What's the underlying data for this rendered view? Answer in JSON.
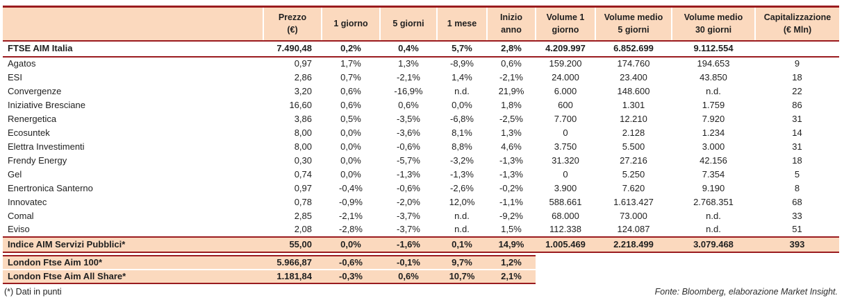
{
  "colors": {
    "accent_border": "#9A1B1F",
    "header_background": "#FBD9BE",
    "text": "#1F1F1F"
  },
  "table": {
    "headers": [
      {
        "lines": [
          ""
        ]
      },
      {
        "lines": [
          "Prezzo",
          "(€)"
        ]
      },
      {
        "lines": [
          "1 giorno"
        ]
      },
      {
        "lines": [
          "5 giorni"
        ]
      },
      {
        "lines": [
          "1 mese"
        ]
      },
      {
        "lines": [
          "Inizio anno"
        ]
      },
      {
        "lines": [
          "Volume 1",
          "giorno"
        ]
      },
      {
        "lines": [
          "Volume medio",
          "5 giorni"
        ]
      },
      {
        "lines": [
          "Volume medio",
          "30 giorni"
        ]
      },
      {
        "lines": [
          "Capitalizzazione",
          "(€ Mln)"
        ]
      }
    ],
    "rows": [
      {
        "style": "index",
        "cells": [
          "FTSE AIM Italia",
          "7.490,48",
          "0,2%",
          "0,4%",
          "5,7%",
          "2,8%",
          "4.209.997",
          "6.852.699",
          "9.112.554",
          ""
        ]
      },
      {
        "style": "normal",
        "cells": [
          "Agatos",
          "0,97",
          "1,7%",
          "1,3%",
          "-8,9%",
          "0,6%",
          "159.200",
          "174.760",
          "194.653",
          "9"
        ]
      },
      {
        "style": "normal",
        "cells": [
          "ESI",
          "2,86",
          "0,7%",
          "-2,1%",
          "1,4%",
          "-2,1%",
          "24.000",
          "23.400",
          "43.850",
          "18"
        ]
      },
      {
        "style": "normal",
        "cells": [
          "Convergenze",
          "3,20",
          "0,6%",
          "-16,9%",
          "n.d.",
          "21,9%",
          "6.000",
          "148.600",
          "n.d.",
          "22"
        ]
      },
      {
        "style": "normal",
        "cells": [
          "Iniziative Bresciane",
          "16,60",
          "0,6%",
          "0,6%",
          "0,0%",
          "1,8%",
          "600",
          "1.301",
          "1.759",
          "86"
        ]
      },
      {
        "style": "normal",
        "cells": [
          "Renergetica",
          "3,86",
          "0,5%",
          "-3,5%",
          "-6,8%",
          "-2,5%",
          "7.700",
          "12.210",
          "7.920",
          "31"
        ]
      },
      {
        "style": "normal",
        "cells": [
          "Ecosuntek",
          "8,00",
          "0,0%",
          "-3,6%",
          "8,1%",
          "1,3%",
          "0",
          "2.128",
          "1.234",
          "14"
        ]
      },
      {
        "style": "normal",
        "cells": [
          "Elettra Investimenti",
          "8,00",
          "0,0%",
          "-0,6%",
          "8,8%",
          "4,6%",
          "3.750",
          "5.500",
          "3.000",
          "31"
        ]
      },
      {
        "style": "normal",
        "cells": [
          "Frendy Energy",
          "0,30",
          "0,0%",
          "-5,7%",
          "-3,2%",
          "-1,3%",
          "31.320",
          "27.216",
          "42.156",
          "18"
        ]
      },
      {
        "style": "normal",
        "cells": [
          "Gel",
          "0,74",
          "0,0%",
          "-1,3%",
          "-1,3%",
          "-1,3%",
          "0",
          "5.250",
          "7.354",
          "5"
        ]
      },
      {
        "style": "normal",
        "cells": [
          "Enertronica Santerno",
          "0,97",
          "-0,4%",
          "-0,6%",
          "-2,6%",
          "-0,2%",
          "3.900",
          "7.620",
          "9.190",
          "8"
        ]
      },
      {
        "style": "normal",
        "cells": [
          "Innovatec",
          "0,78",
          "-0,9%",
          "-2,0%",
          "12,0%",
          "-1,1%",
          "588.661",
          "1.613.427",
          "2.768.351",
          "68"
        ]
      },
      {
        "style": "normal",
        "cells": [
          "Comal",
          "2,85",
          "-2,1%",
          "-3,7%",
          "n.d.",
          "-9,2%",
          "68.000",
          "73.000",
          "n.d.",
          "33"
        ]
      },
      {
        "style": "normal",
        "cells": [
          "Eviso",
          "2,08",
          "-2,8%",
          "-3,7%",
          "n.d.",
          "1,5%",
          "112.338",
          "124.087",
          "n.d.",
          "51"
        ]
      },
      {
        "style": "aim",
        "cells": [
          "Indice AIM Servizi Pubblici*",
          "55,00",
          "0,0%",
          "-1,6%",
          "0,1%",
          "14,9%",
          "1.005.469",
          "2.218.499",
          "3.079.468",
          "393"
        ]
      },
      {
        "style": "spacer",
        "cells": []
      },
      {
        "style": "london-first",
        "cells": [
          "London Ftse Aim 100*",
          "5.966,87",
          "-0,6%",
          "-0,1%",
          "9,7%",
          "1,2%",
          "",
          "",
          "",
          ""
        ]
      },
      {
        "style": "london-last",
        "cells": [
          "London Ftse Aim All Share*",
          "1.181,84",
          "-0,3%",
          "0,6%",
          "10,7%",
          "2,1%",
          "",
          "",
          "",
          ""
        ]
      }
    ]
  },
  "footer": {
    "footnote": "(*) Dati in punti",
    "source": "Fonte: Bloomberg, elaborazione Market Insight."
  }
}
